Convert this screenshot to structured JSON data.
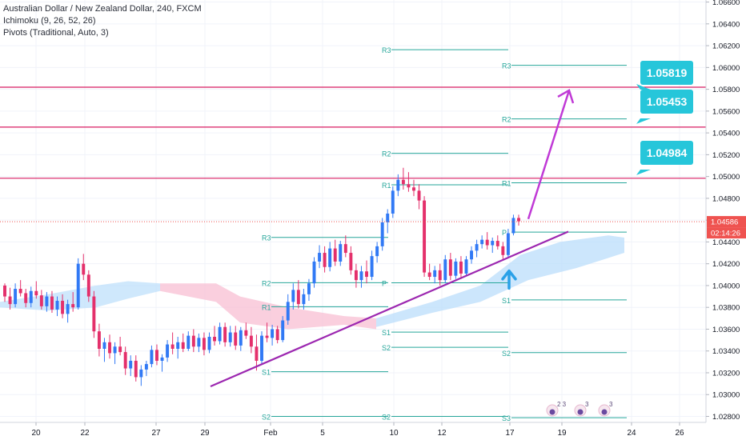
{
  "legend": {
    "title": "Australian Dollar / New Zealand Dollar, 240, FXCM",
    "indicator1": "Ichimoku (9, 26, 52, 26)",
    "indicator2": "Pivots (Traditional, Auto, 3)"
  },
  "colors": {
    "up": "#3179f5",
    "down": "#e4306b",
    "pivot": "#26a69a",
    "pivot_label": "#26a69a",
    "hline": "#d81b60",
    "trend": "#9c27b0",
    "arrow_up": "#2aa1e8",
    "callout": "#26c6da",
    "price_tag": "#ef5350",
    "cloud_bull": "#bbdefb",
    "cloud_bear": "#f8bbd0"
  },
  "price_tag": {
    "price": "1.04586",
    "countdown": "02:14:26"
  },
  "callouts": [
    "1.05819",
    "1.05453",
    "1.04984"
  ],
  "chart_data": {
    "type": "candlestick",
    "title": "Australian Dollar / New Zealand Dollar, 240, FXCM",
    "ylim": [
      1.0275,
      1.0665
    ],
    "y_ticks": [
      "1.02800",
      "1.03000",
      "1.03200",
      "1.03400",
      "1.03600",
      "1.03800",
      "1.04000",
      "1.04200",
      "1.04400",
      "1.04600",
      "1.04800",
      "1.05000",
      "1.05200",
      "1.05400",
      "1.05600",
      "1.05800",
      "1.06000",
      "1.06200",
      "1.06400",
      "1.06600"
    ],
    "x_ticks": [
      "20",
      "22",
      "27",
      "29",
      "Feb",
      "5",
      "10",
      "12",
      "17",
      "19",
      "24",
      "26"
    ],
    "candles": [
      [
        1.04,
        1.0402,
        1.0385,
        1.039
      ],
      [
        1.039,
        1.0398,
        1.0378,
        1.0383
      ],
      [
        1.0383,
        1.0402,
        1.038,
        1.0397
      ],
      [
        1.0397,
        1.0405,
        1.039,
        1.0393
      ],
      [
        1.0393,
        1.0397,
        1.038,
        1.0384
      ],
      [
        1.0384,
        1.0399,
        1.038,
        1.0395
      ],
      [
        1.0395,
        1.0404,
        1.0388,
        1.0391
      ],
      [
        1.0391,
        1.0396,
        1.0378,
        1.0381
      ],
      [
        1.0381,
        1.0394,
        1.0376,
        1.039
      ],
      [
        1.039,
        1.0395,
        1.0375,
        1.0378
      ],
      [
        1.0378,
        1.039,
        1.0372,
        1.0386
      ],
      [
        1.0386,
        1.0392,
        1.037,
        1.0374
      ],
      [
        1.0374,
        1.0387,
        1.0366,
        1.0383
      ],
      [
        1.0383,
        1.0394,
        1.0376,
        1.038
      ],
      [
        1.038,
        1.0425,
        1.0378,
        1.042
      ],
      [
        1.042,
        1.0429,
        1.0405,
        1.041
      ],
      [
        1.041,
        1.0414,
        1.0385,
        1.039
      ],
      [
        1.039,
        1.0395,
        1.0352,
        1.0358
      ],
      [
        1.0358,
        1.0365,
        1.0335,
        1.0342
      ],
      [
        1.0342,
        1.0352,
        1.033,
        1.0348
      ],
      [
        1.0348,
        1.0355,
        1.0333,
        1.0338
      ],
      [
        1.0338,
        1.0348,
        1.0328,
        1.0344
      ],
      [
        1.0344,
        1.0353,
        1.0336,
        1.0339
      ],
      [
        1.0339,
        1.0344,
        1.0318,
        1.0324
      ],
      [
        1.0324,
        1.0336,
        1.0317,
        1.0331
      ],
      [
        1.0331,
        1.0336,
        1.0312,
        1.0316
      ],
      [
        1.0316,
        1.0327,
        1.0308,
        1.0323
      ],
      [
        1.0323,
        1.0331,
        1.0317,
        1.0328
      ],
      [
        1.0328,
        1.0345,
        1.0325,
        1.0341
      ],
      [
        1.0341,
        1.0346,
        1.0327,
        1.0331
      ],
      [
        1.0331,
        1.0337,
        1.0321,
        1.0334
      ],
      [
        1.0334,
        1.035,
        1.033,
        1.0346
      ],
      [
        1.0346,
        1.0357,
        1.0337,
        1.0342
      ],
      [
        1.0342,
        1.0353,
        1.0333,
        1.0348
      ],
      [
        1.0348,
        1.0356,
        1.0339,
        1.0342
      ],
      [
        1.0342,
        1.0358,
        1.034,
        1.0354
      ],
      [
        1.0354,
        1.036,
        1.0339,
        1.0344
      ],
      [
        1.0344,
        1.0356,
        1.0339,
        1.0352
      ],
      [
        1.0352,
        1.0357,
        1.0336,
        1.0341
      ],
      [
        1.0341,
        1.0357,
        1.0338,
        1.0353
      ],
      [
        1.0353,
        1.0363,
        1.0345,
        1.0349
      ],
      [
        1.0349,
        1.0366,
        1.0346,
        1.0362
      ],
      [
        1.0362,
        1.0366,
        1.0344,
        1.0348
      ],
      [
        1.0348,
        1.0363,
        1.0344,
        1.0357
      ],
      [
        1.0357,
        1.0363,
        1.0341,
        1.0345
      ],
      [
        1.0345,
        1.0362,
        1.034,
        1.0359
      ],
      [
        1.0359,
        1.0366,
        1.0351,
        1.0354
      ],
      [
        1.0354,
        1.0362,
        1.0338,
        1.0344
      ],
      [
        1.0344,
        1.0355,
        1.0322,
        1.0331
      ],
      [
        1.0331,
        1.0358,
        1.0328,
        1.0354
      ],
      [
        1.0354,
        1.0366,
        1.0348,
        1.0352
      ],
      [
        1.0352,
        1.0364,
        1.0345,
        1.036
      ],
      [
        1.036,
        1.0363,
        1.0347,
        1.035
      ],
      [
        1.035,
        1.0372,
        1.0348,
        1.0368
      ],
      [
        1.0368,
        1.0392,
        1.0364,
        1.0385
      ],
      [
        1.0385,
        1.0402,
        1.0378,
        1.0396
      ],
      [
        1.0396,
        1.0405,
        1.0379,
        1.0383
      ],
      [
        1.0383,
        1.0397,
        1.0378,
        1.0392
      ],
      [
        1.0392,
        1.0406,
        1.0386,
        1.0402
      ],
      [
        1.0402,
        1.0426,
        1.0398,
        1.0422
      ],
      [
        1.0422,
        1.0437,
        1.0416,
        1.043
      ],
      [
        1.043,
        1.0436,
        1.0412,
        1.0417
      ],
      [
        1.0417,
        1.044,
        1.0413,
        1.0434
      ],
      [
        1.0434,
        1.0442,
        1.0418,
        1.0422
      ],
      [
        1.0422,
        1.0441,
        1.0418,
        1.0438
      ],
      [
        1.0438,
        1.0446,
        1.0426,
        1.043
      ],
      [
        1.043,
        1.0436,
        1.041,
        1.0414
      ],
      [
        1.0414,
        1.042,
        1.0398,
        1.0405
      ],
      [
        1.0405,
        1.0418,
        1.0398,
        1.0413
      ],
      [
        1.0413,
        1.0423,
        1.0402,
        1.0408
      ],
      [
        1.0408,
        1.0432,
        1.0405,
        1.0427
      ],
      [
        1.0427,
        1.044,
        1.0421,
        1.0436
      ],
      [
        1.0436,
        1.0462,
        1.0432,
        1.0458
      ],
      [
        1.0458,
        1.047,
        1.0448,
        1.0466
      ],
      [
        1.0466,
        1.0491,
        1.0462,
        1.0487
      ],
      [
        1.0487,
        1.0502,
        1.0482,
        1.0497
      ],
      [
        1.0497,
        1.0508,
        1.0488,
        1.0493
      ],
      [
        1.0493,
        1.0504,
        1.0486,
        1.049
      ],
      [
        1.049,
        1.0497,
        1.0482,
        1.0487
      ],
      [
        1.0487,
        1.0493,
        1.047,
        1.0478
      ],
      [
        1.0478,
        1.0482,
        1.0408,
        1.0412
      ],
      [
        1.0412,
        1.042,
        1.0405,
        1.0408
      ],
      [
        1.0408,
        1.0418,
        1.0402,
        1.0414
      ],
      [
        1.0414,
        1.042,
        1.04,
        1.0405
      ],
      [
        1.0405,
        1.0428,
        1.0402,
        1.0424
      ],
      [
        1.0424,
        1.043,
        1.0405,
        1.0409
      ],
      [
        1.0409,
        1.0425,
        1.0406,
        1.0422
      ],
      [
        1.0422,
        1.0427,
        1.0406,
        1.0411
      ],
      [
        1.0411,
        1.0427,
        1.0409,
        1.0424
      ],
      [
        1.0424,
        1.0436,
        1.042,
        1.0432
      ],
      [
        1.0432,
        1.0442,
        1.0426,
        1.0438
      ],
      [
        1.0438,
        1.0446,
        1.0434,
        1.0442
      ],
      [
        1.0442,
        1.0449,
        1.0433,
        1.0437
      ],
      [
        1.0437,
        1.0444,
        1.043,
        1.0441
      ],
      [
        1.0441,
        1.0446,
        1.0433,
        1.0436
      ],
      [
        1.0436,
        1.044,
        1.0424,
        1.0428
      ],
      [
        1.0428,
        1.0452,
        1.0425,
        1.0448
      ],
      [
        1.0448,
        1.0465,
        1.0446,
        1.0462
      ],
      [
        1.0462,
        1.0465,
        1.0455,
        1.0459
      ]
    ]
  }
}
